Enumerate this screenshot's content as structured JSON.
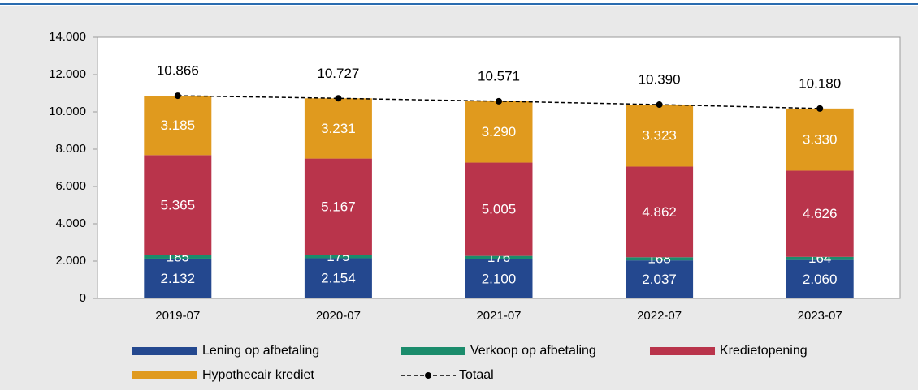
{
  "chart_data": {
    "type": "bar",
    "stacked": true,
    "categories": [
      "2019-07",
      "2020-07",
      "2021-07",
      "2022-07",
      "2023-07"
    ],
    "series": [
      {
        "name": "Lening op afbetaling",
        "color": "#24488f",
        "values": [
          2132,
          2154,
          2100,
          2037,
          2060
        ],
        "value_labels": [
          "2.132",
          "2.154",
          "2.100",
          "2.037",
          "2.060"
        ]
      },
      {
        "name": "Verkoop op afbetaling",
        "color": "#1b8c6c",
        "values": [
          185,
          175,
          176,
          168,
          164
        ]
      },
      {
        "name": "Kredietopening",
        "color": "#b9344b",
        "values": [
          5365,
          5167,
          5005,
          4862,
          4626
        ],
        "value_labels": [
          "5.365",
          "5.167",
          "5.005",
          "4.862",
          "4.626"
        ]
      },
      {
        "name": "Hypothecair krediet",
        "color": "#e09a1e",
        "values": [
          3185,
          3231,
          3290,
          3323,
          3330
        ],
        "value_labels": [
          "3.185",
          "3.231",
          "3.290",
          "3.323",
          "3.330"
        ]
      },
      {
        "name": "Totaal",
        "type": "line",
        "color": "#000000",
        "values": [
          10866,
          10727,
          10571,
          10390,
          10180
        ],
        "value_labels": [
          "10.866",
          "10.727",
          "10.571",
          "10.390",
          "10.180"
        ]
      }
    ],
    "ylim": [
      0,
      14000
    ],
    "yticks": [
      0,
      {
        "value": 2000,
        "label": "2.000"
      },
      {
        "value": 4000,
        "label": "4.000"
      },
      {
        "value": 6000,
        "label": "6.000"
      },
      {
        "value": 8000,
        "label": "8.000"
      },
      {
        "value": 10000,
        "label": "10.000"
      },
      {
        "value": 12000,
        "label": "12.000"
      },
      {
        "value": 14000,
        "label": "14.000"
      }
    ],
    "legend": "bottom"
  }
}
